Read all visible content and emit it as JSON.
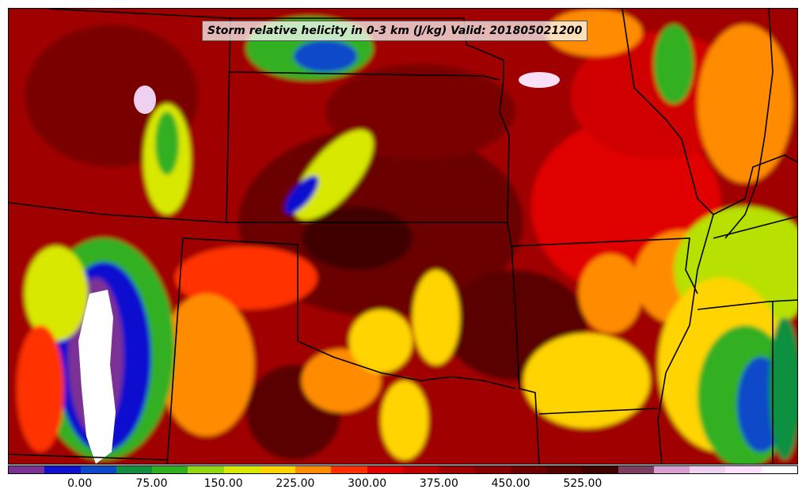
{
  "title": "Storm relative helicity in 0-3 km (J/kg) Valid: 201805021200",
  "colorbar": {
    "segments": [
      "#7b3294",
      "#1010d0",
      "#0c48c8",
      "#109040",
      "#30b020",
      "#90d810",
      "#d8e800",
      "#ffd400",
      "#ff8c00",
      "#ff3000",
      "#e00000",
      "#c00000",
      "#a00000",
      "#880000",
      "#700000",
      "#580000",
      "#400000",
      "#7a4060",
      "#d8a0d0",
      "#f0d0f0",
      "#ffe0ff",
      "#ffffff"
    ],
    "labels": [
      "0.00",
      "75.00",
      "150.00",
      "225.00",
      "300.00",
      "375.00",
      "450.00",
      "525.00"
    ]
  }
}
